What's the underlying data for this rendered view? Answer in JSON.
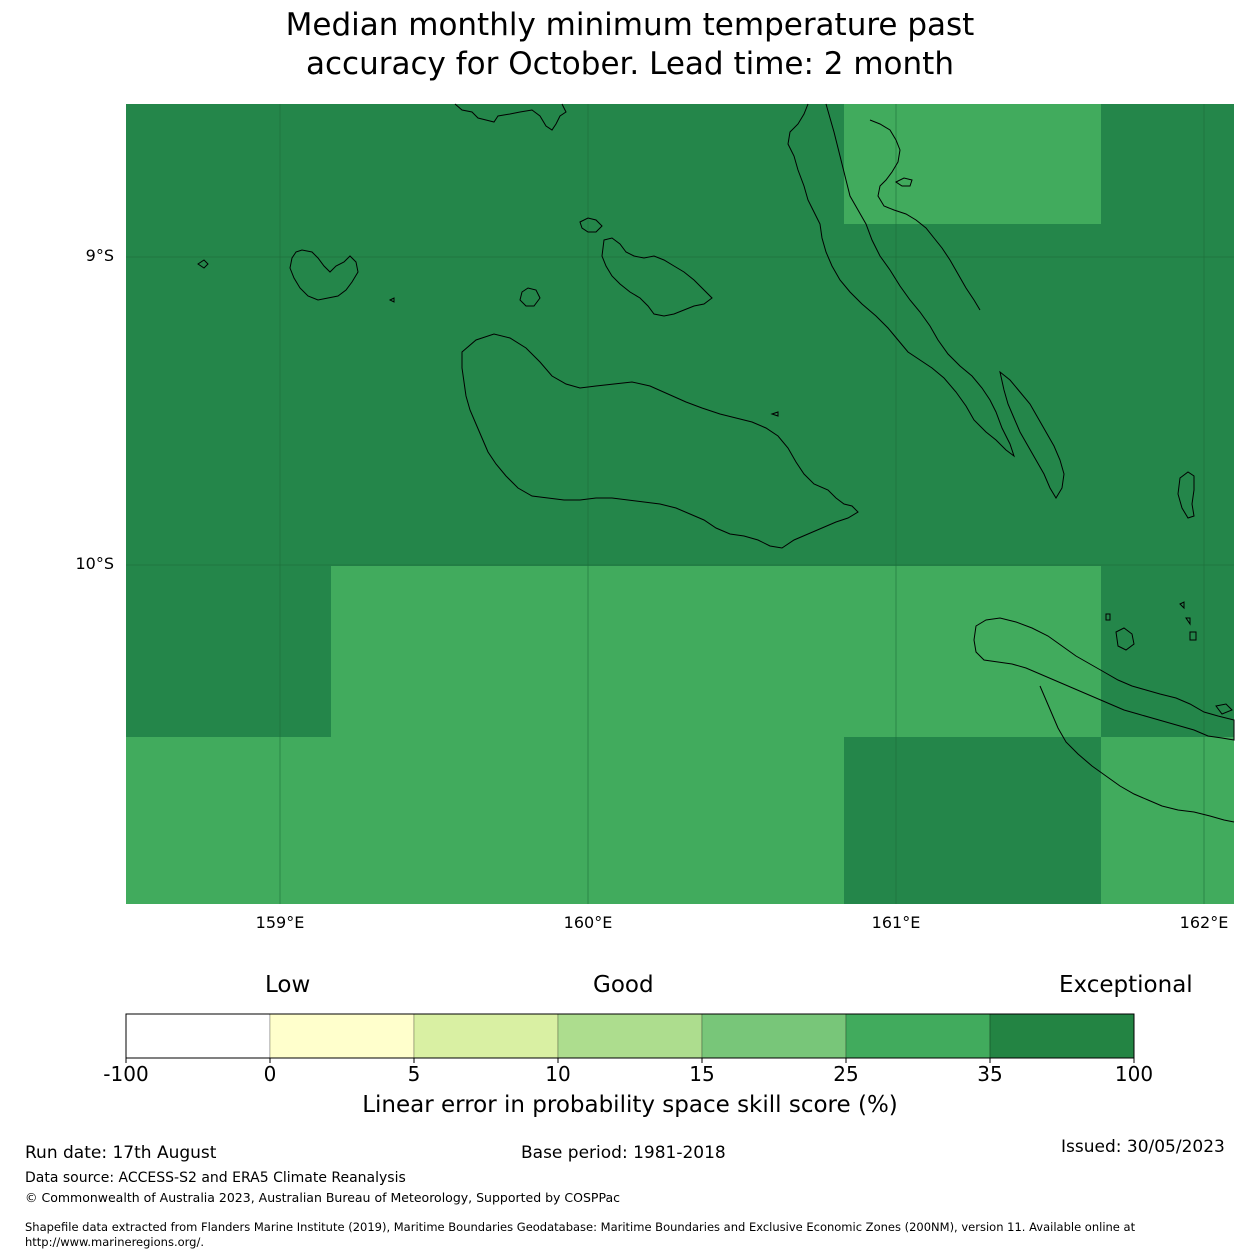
{
  "title_lines": [
    "Median monthly minimum temperature past",
    "accuracy for October. Lead time: 2 month"
  ],
  "map": {
    "lon_range": [
      158.5,
      162.1
    ],
    "lat_range": [
      -11.1,
      -8.5
    ],
    "lat_ticks": [
      {
        "value": -9,
        "label": "9°S"
      },
      {
        "value": -10,
        "label": "10°S"
      }
    ],
    "lon_ticks": [
      {
        "value": 159,
        "label": "159°E"
      },
      {
        "value": 160,
        "label": "160°E"
      },
      {
        "value": 161,
        "label": "161°E"
      },
      {
        "value": 162,
        "label": "162°E"
      }
    ],
    "cell_colors": {
      "exceptional": "#24864a",
      "good_high": "#41ab5d"
    },
    "grid_line_color": "#1b6b38",
    "coastline_color": "#000000"
  },
  "colorbar": {
    "category_labels": {
      "low": "Low",
      "good": "Good",
      "exceptional": "Exceptional"
    },
    "ticks": [
      "-100",
      "0",
      "5",
      "10",
      "15",
      "25",
      "35",
      "100"
    ],
    "colors": [
      "#ffffff",
      "#ffffcc",
      "#d9f0a3",
      "#addd8e",
      "#78c679",
      "#41ab5d",
      "#238443"
    ],
    "title": "Linear error in probability space skill score (%)"
  },
  "footer": {
    "run_date": "Run date: 17th August",
    "base_period": "Base period: 1981-2018",
    "issued": "Issued: 30/05/2023",
    "data_source": "Data source: ACCESS-S2 and ERA5 Climate Reanalysis",
    "copyright": "© Commonwealth of Australia 2023, Australian Bureau of Meteorology, Supported by COSPPac",
    "shapefile_line1": "Shapefile data extracted from Flanders Marine Institute (2019), Maritime Boundaries Geodatabase: Maritime Boundaries and Exclusive Economic Zones (200NM), version 11. Available online at",
    "shapefile_line2": "http://www.marineregions.org/."
  }
}
